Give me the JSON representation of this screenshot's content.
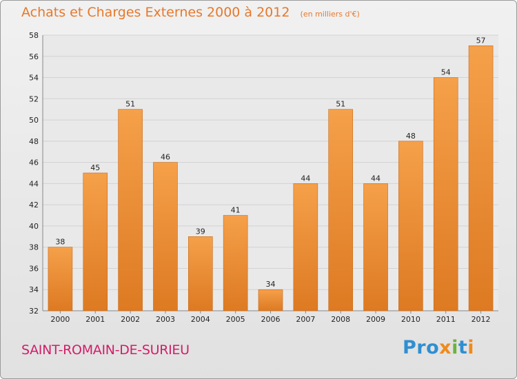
{
  "header": {
    "title": "Achats et Charges Externes 2000 à 2012",
    "unit": "(en milliers d'€)"
  },
  "footer": {
    "commune": "SAINT-ROMAIN-DE-SURIEU",
    "logo_parts": [
      "Pro",
      "x",
      "i",
      "t",
      "i"
    ]
  },
  "colors": {
    "bar": "#f5a04a",
    "bar_dark": "#dd7a22",
    "title": "#e6782a",
    "commune": "#d21d69"
  },
  "chart_data": {
    "type": "bar",
    "title": "Achats et Charges Externes 2000 à 2012",
    "subtitle": "(en milliers d'€)",
    "categories": [
      "2000",
      "2001",
      "2002",
      "2003",
      "2004",
      "2005",
      "2006",
      "2007",
      "2008",
      "2009",
      "2010",
      "2011",
      "2012"
    ],
    "values": [
      38,
      45,
      51,
      46,
      39,
      41,
      34,
      44,
      51,
      44,
      48,
      54,
      57
    ],
    "ylim": [
      32,
      58
    ],
    "yticks": [
      32,
      34,
      36,
      38,
      40,
      42,
      44,
      46,
      48,
      50,
      52,
      54,
      56,
      58
    ],
    "grid": true
  }
}
